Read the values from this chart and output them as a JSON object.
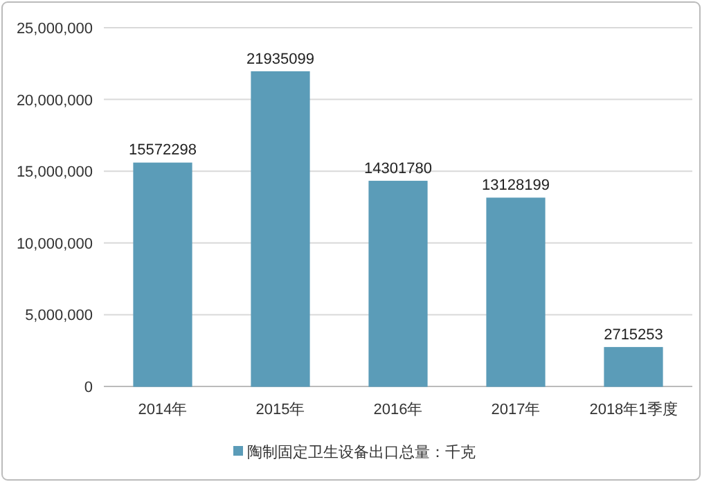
{
  "chart_data": {
    "type": "bar",
    "categories": [
      "2014年",
      "2015年",
      "2016年",
      "2017年",
      "2018年1季度"
    ],
    "series": [
      {
        "name": "陶制固定卫生设备出口总量：千克",
        "color": "#5b9cb8",
        "values": [
          15572298,
          21935099,
          14301780,
          13128199,
          2715253
        ]
      }
    ],
    "ylim": [
      0,
      25000000
    ],
    "yticks": [
      {
        "value": 0,
        "label": "0"
      },
      {
        "value": 5000000,
        "label": "5,000,000"
      },
      {
        "value": 10000000,
        "label": "10,000,000"
      },
      {
        "value": 15000000,
        "label": "15,000,000"
      },
      {
        "value": 20000000,
        "label": "20,000,000"
      },
      {
        "value": 25000000,
        "label": "25,000,000"
      }
    ],
    "grid": "y",
    "legend": "bottom",
    "data_labels": true
  }
}
